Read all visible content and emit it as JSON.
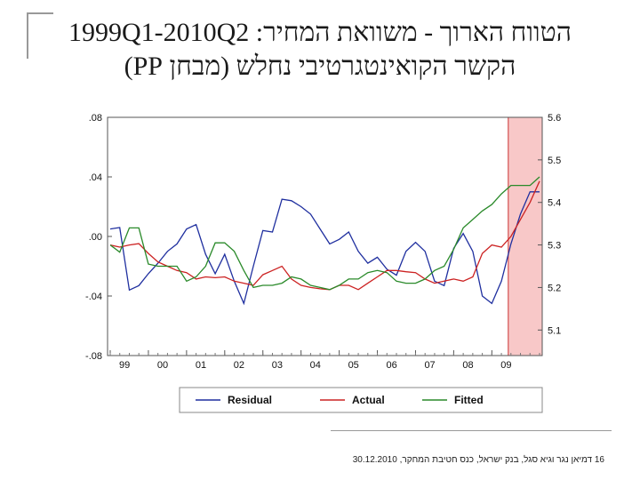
{
  "slide": {
    "title_line1": "הטווח הארוך - משוואת המחיר: 1999Q1-2010Q2",
    "title_line2": "הקשר הקואינטגרטיבי נחלש (מבחן PP)",
    "footer_text": "דמיאן נגר וגיא סגל, בנק ישראל, כנס חטיבת המחקר, 30.12.2010",
    "page_number": "16"
  },
  "chart_data": {
    "type": "line",
    "x": [
      "1999Q1",
      "1999Q2",
      "1999Q3",
      "1999Q4",
      "2000Q1",
      "2000Q2",
      "2000Q3",
      "2000Q4",
      "2001Q1",
      "2001Q2",
      "2001Q3",
      "2001Q4",
      "2002Q1",
      "2002Q2",
      "2002Q3",
      "2002Q4",
      "2003Q1",
      "2003Q2",
      "2003Q3",
      "2003Q4",
      "2004Q1",
      "2004Q2",
      "2004Q3",
      "2004Q4",
      "2005Q1",
      "2005Q2",
      "2005Q3",
      "2005Q4",
      "2006Q1",
      "2006Q2",
      "2006Q3",
      "2006Q4",
      "2007Q1",
      "2007Q2",
      "2007Q3",
      "2007Q4",
      "2008Q1",
      "2008Q2",
      "2008Q3",
      "2008Q4",
      "2009Q1",
      "2009Q2",
      "2009Q3",
      "2009Q4",
      "2010Q1",
      "2010Q2"
    ],
    "x_tick_labels": [
      "99",
      "00",
      "01",
      "02",
      "03",
      "04",
      "05",
      "06",
      "07",
      "08",
      "09"
    ],
    "left_axis": {
      "ticks": [
        ".08",
        ".04",
        ".00",
        "-.04",
        "-.08"
      ],
      "range": [
        -0.08,
        0.08
      ]
    },
    "right_axis": {
      "ticks": [
        "5.6",
        "5.5",
        "5.4",
        "5.3",
        "5.2",
        "5.1"
      ],
      "range": [
        5.04,
        5.6
      ]
    },
    "series": [
      {
        "name": "Residual",
        "axis": "left",
        "color": "#1f2f9f",
        "values": [
          0.005,
          0.006,
          -0.036,
          -0.033,
          -0.025,
          -0.018,
          -0.01,
          -0.005,
          0.005,
          0.008,
          -0.012,
          -0.025,
          -0.012,
          -0.03,
          -0.045,
          -0.02,
          0.004,
          0.003,
          0.025,
          0.024,
          0.02,
          0.015,
          0.005,
          -0.005,
          -0.002,
          0.003,
          -0.01,
          -0.018,
          -0.014,
          -0.022,
          -0.026,
          -0.01,
          -0.004,
          -0.01,
          -0.03,
          -0.033,
          -0.008,
          0.002,
          -0.01,
          -0.04,
          -0.045,
          -0.03,
          -0.005,
          0.015,
          0.03,
          0.03
        ]
      },
      {
        "name": "Actual",
        "axis": "right",
        "color": "#cc2222",
        "values": [
          5.3,
          5.295,
          5.3,
          5.303,
          5.28,
          5.26,
          5.25,
          5.24,
          5.235,
          5.22,
          5.225,
          5.223,
          5.225,
          5.215,
          5.21,
          5.205,
          5.23,
          5.24,
          5.25,
          5.22,
          5.205,
          5.2,
          5.197,
          5.195,
          5.205,
          5.205,
          5.195,
          5.21,
          5.225,
          5.24,
          5.24,
          5.237,
          5.235,
          5.22,
          5.21,
          5.215,
          5.22,
          5.215,
          5.225,
          5.28,
          5.3,
          5.295,
          5.32,
          5.36,
          5.4,
          5.45
        ]
      },
      {
        "name": "Fitted",
        "axis": "right",
        "color": "#2a8a2a",
        "values": [
          5.3,
          5.283,
          5.34,
          5.34,
          5.255,
          5.25,
          5.25,
          5.25,
          5.215,
          5.225,
          5.25,
          5.305,
          5.305,
          5.285,
          5.24,
          5.2,
          5.205,
          5.205,
          5.21,
          5.225,
          5.22,
          5.205,
          5.2,
          5.195,
          5.205,
          5.22,
          5.22,
          5.235,
          5.24,
          5.235,
          5.215,
          5.21,
          5.21,
          5.22,
          5.24,
          5.25,
          5.29,
          5.34,
          5.36,
          5.38,
          5.395,
          5.42,
          5.44,
          5.44,
          5.44,
          5.46
        ]
      }
    ],
    "highlight": {
      "from": "2009Q3",
      "to": "2010Q2",
      "color": "#f8c8c8"
    },
    "legend_position": "bottom",
    "grid": false
  }
}
